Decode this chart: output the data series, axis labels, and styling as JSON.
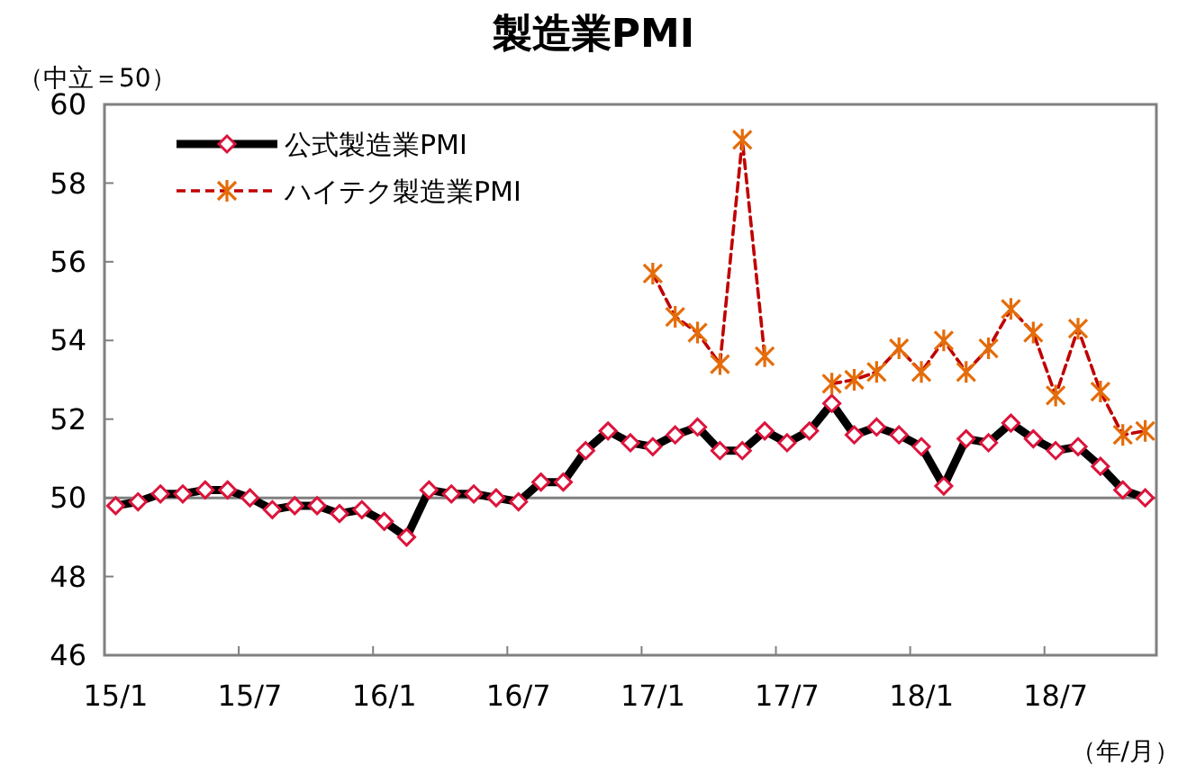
{
  "chart_data": {
    "type": "line",
    "title": "製造業PMI",
    "categories": [
      "15/1",
      null,
      null,
      null,
      null,
      null,
      "15/7",
      null,
      null,
      null,
      null,
      null,
      "16/1",
      null,
      null,
      null,
      null,
      null,
      "16/7",
      null,
      null,
      null,
      null,
      null,
      "17/1",
      null,
      null,
      null,
      null,
      null,
      "17/7",
      null,
      null,
      null,
      null,
      null,
      "18/1",
      null,
      null,
      null,
      null,
      null,
      "18/7",
      null,
      null,
      null,
      null
    ],
    "series": [
      {
        "name": "公式製造業PMI",
        "color": "#000000",
        "marker": "diamond",
        "line_style": "solid",
        "values": [
          49.8,
          49.9,
          50.1,
          50.1,
          50.2,
          50.2,
          50.0,
          49.7,
          49.8,
          49.8,
          49.6,
          49.7,
          49.4,
          49.0,
          50.2,
          50.1,
          50.1,
          50.0,
          49.9,
          50.4,
          50.4,
          51.2,
          51.7,
          51.4,
          51.3,
          51.6,
          51.8,
          51.2,
          51.2,
          51.7,
          51.4,
          51.7,
          52.4,
          51.6,
          51.8,
          51.6,
          51.3,
          50.3,
          51.5,
          51.4,
          51.9,
          51.5,
          51.2,
          51.3,
          50.8,
          50.2,
          50.0
        ]
      },
      {
        "name": "ハイテク製造業PMI",
        "color": "#c00000",
        "marker": "cross",
        "line_style": "dashed",
        "values": [
          null,
          null,
          null,
          null,
          null,
          null,
          null,
          null,
          null,
          null,
          null,
          null,
          null,
          null,
          null,
          null,
          null,
          null,
          null,
          null,
          null,
          null,
          null,
          null,
          55.7,
          54.6,
          54.2,
          53.4,
          59.1,
          53.6,
          null,
          null,
          52.9,
          53.0,
          53.2,
          53.8,
          53.2,
          54.0,
          53.2,
          53.8,
          54.8,
          54.2,
          52.6,
          54.3,
          52.7,
          51.6,
          51.7
        ]
      }
    ],
    "ylim": [
      46,
      60
    ],
    "yticks": [
      46,
      48,
      50,
      52,
      54,
      56,
      58,
      60
    ],
    "ref_lines": [
      {
        "axis": "y",
        "value": 50,
        "color": "#808080"
      }
    ],
    "legend": "top left",
    "annotations": [
      "（中立＝50）",
      "（年/月）"
    ]
  }
}
